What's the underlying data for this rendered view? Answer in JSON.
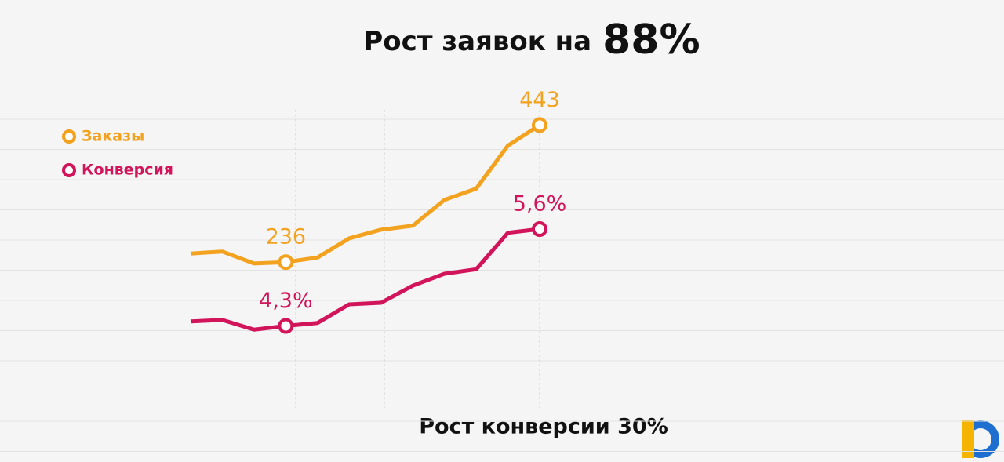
{
  "chart_data": {
    "type": "line",
    "title": [
      "Рост заявок на",
      "88%"
    ],
    "subtitle": "Рост конверсии 30%",
    "categories": [
      null,
      null,
      null,
      null,
      null,
      null,
      null,
      null,
      null,
      null,
      null,
      null
    ],
    "ylim": [
      16,
      466
    ],
    "y2lim": [
      3.2,
      7.2
    ],
    "series": [
      {
        "name": "Заказы",
        "color": "#f2a21e",
        "values": [
          249,
          252,
          234,
          236,
          243,
          272,
          285,
          291,
          330,
          347,
          412,
          443
        ],
        "value_labels": [
          null,
          null,
          null,
          "236",
          null,
          null,
          null,
          null,
          null,
          null,
          null,
          "443"
        ]
      },
      {
        "name": "Конверсия",
        "color": "#d2145a",
        "axis": "y2",
        "values": [
          4.36,
          4.38,
          4.25,
          4.3,
          4.34,
          4.59,
          4.61,
          4.84,
          5.0,
          5.06,
          5.55,
          5.6
        ],
        "value_labels": [
          null,
          null,
          null,
          "4,3%",
          null,
          null,
          null,
          null,
          null,
          null,
          null,
          "5,6%"
        ]
      }
    ],
    "legend": "top-left",
    "grid": true
  }
}
